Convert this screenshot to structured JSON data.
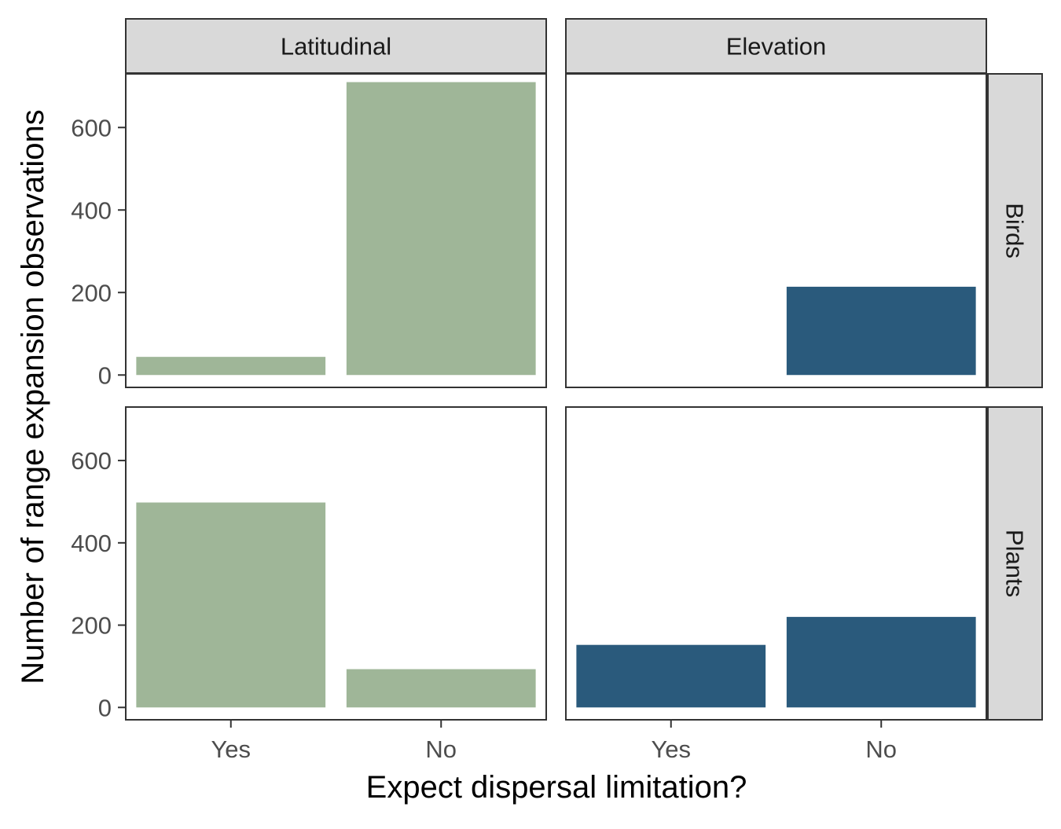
{
  "chart_data": {
    "type": "bar",
    "xlabel": "Expect dispersal limitation?",
    "ylabel": "Number of range expansion observations",
    "categories": [
      "Yes",
      "No"
    ],
    "ylim": [
      -30,
      730
    ],
    "yticks": [
      0,
      200,
      400,
      600
    ],
    "grid": false,
    "facet_columns": [
      "Latitudinal",
      "Elevation"
    ],
    "facet_rows": [
      "Birds",
      "Plants"
    ],
    "colors": {
      "Latitudinal": "#9fb698",
      "Elevation": "#2a5a7c",
      "strip_fill": "#d9d9d9",
      "panel_border": "#333333"
    },
    "panels": [
      {
        "row": "Birds",
        "column": "Latitudinal",
        "values": {
          "Yes": 44,
          "No": 710
        }
      },
      {
        "row": "Birds",
        "column": "Elevation",
        "values": {
          "Yes": 0,
          "No": 214
        }
      },
      {
        "row": "Plants",
        "column": "Latitudinal",
        "values": {
          "Yes": 498,
          "No": 93
        }
      },
      {
        "row": "Plants",
        "column": "Elevation",
        "values": {
          "Yes": 152,
          "No": 220
        }
      }
    ]
  }
}
